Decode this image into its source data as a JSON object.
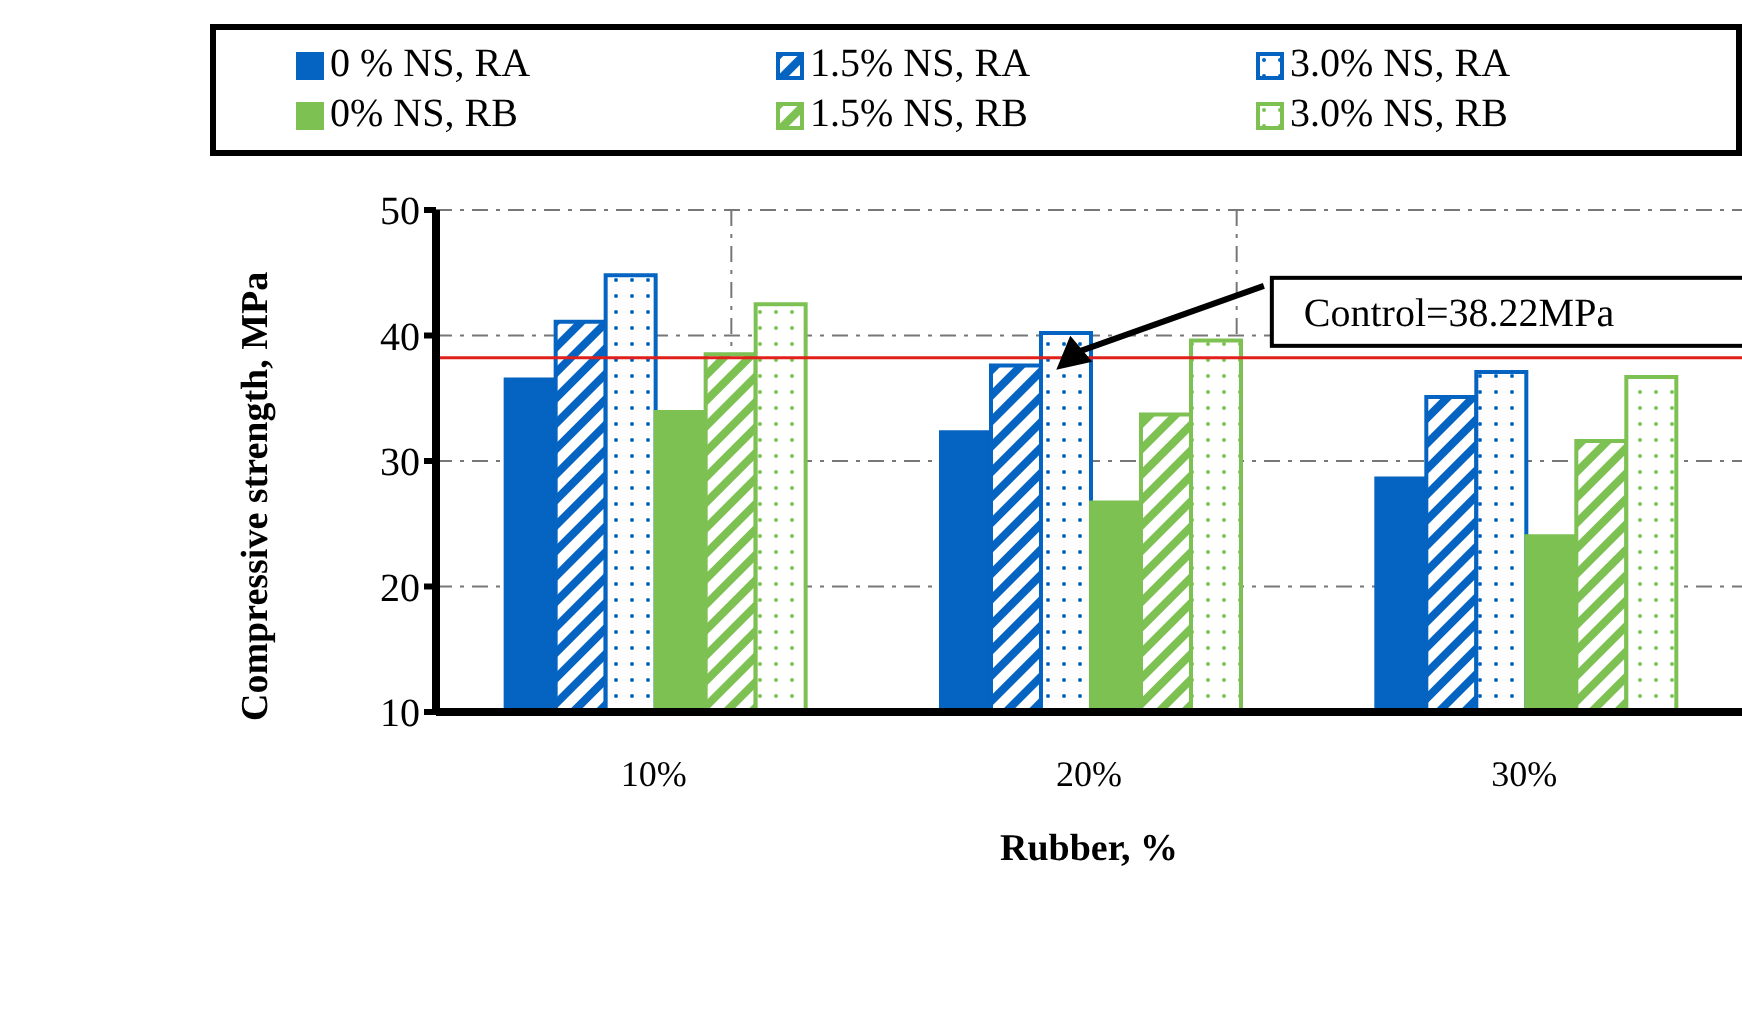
{
  "chart_data": {
    "type": "bar",
    "xlabel": "Rubber, %",
    "ylabel": "Compressive strength, MPa",
    "categories": [
      "10%",
      "20%",
      "30%"
    ],
    "series": [
      {
        "name": "0 % NS, RA",
        "color": "#0563c1",
        "values": [
          36.5,
          32.3,
          28.6
        ]
      },
      {
        "name": "1.5% NS, RA",
        "color": "#0563c1",
        "values": [
          41.1,
          37.6,
          35.1
        ]
      },
      {
        "name": "3.0% NS, RA",
        "color": "#0563c1",
        "values": [
          44.8,
          40.2,
          37.1
        ]
      },
      {
        "name": "0% NS, RB",
        "color": "#7cc152",
        "values": [
          33.9,
          26.7,
          24.0
        ]
      },
      {
        "name": "1.5% NS, RB",
        "color": "#7cc152",
        "values": [
          38.5,
          33.7,
          31.6
        ]
      },
      {
        "name": "3.0% NS, RB",
        "color": "#7cc152",
        "values": [
          42.5,
          39.6,
          36.7
        ]
      }
    ],
    "ylim": [
      10,
      50
    ],
    "yticks": [
      10,
      20,
      30,
      40,
      50
    ],
    "grid": true,
    "legend": "top",
    "ref_lines": [
      {
        "axis": "y",
        "value": 38.22,
        "label": "Control=38.22MPa",
        "color": "#e0201b"
      }
    ]
  }
}
